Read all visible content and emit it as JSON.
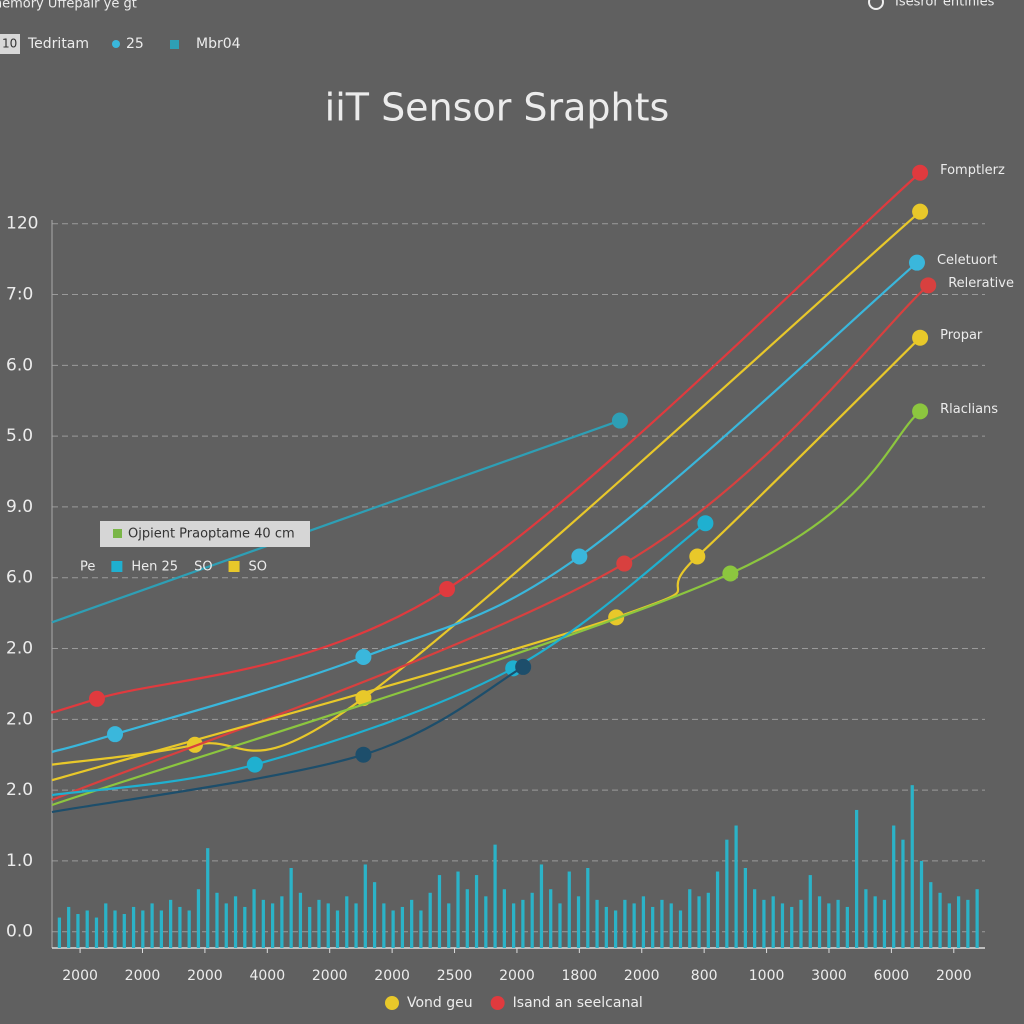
{
  "header": {
    "app_title": "Inemory Uffepair ye gt",
    "badge": "10",
    "tab": "Tedritam",
    "count": "25",
    "code": "Mbr04",
    "status": "Isesror ehtinies"
  },
  "chart_data": {
    "type": "line",
    "title": "iiT Sensor Sraphts",
    "xlim": [
      -0.45,
      14.5
    ],
    "xticks": [
      {
        "value": 0,
        "label": "2000"
      },
      {
        "value": 1,
        "label": "2000"
      },
      {
        "value": 2,
        "label": "2000"
      },
      {
        "value": 3,
        "label": "4000"
      },
      {
        "value": 4,
        "label": "2000"
      },
      {
        "value": 5,
        "label": "2000"
      },
      {
        "value": 6,
        "label": "2500"
      },
      {
        "value": 7,
        "label": "2000"
      },
      {
        "value": 8,
        "label": "1800"
      },
      {
        "value": 9,
        "label": "2000"
      },
      {
        "value": 10,
        "label": "800"
      },
      {
        "value": 11,
        "label": "1000"
      },
      {
        "value": 12,
        "label": "3000"
      },
      {
        "value": 13,
        "label": "6000"
      },
      {
        "value": 14,
        "label": "2000"
      }
    ],
    "ylim": [
      -0.23,
      10.9
    ],
    "yticks": [
      {
        "value": 0,
        "label": "0.0"
      },
      {
        "value": 1,
        "label": "1.0"
      },
      {
        "value": 2,
        "label": "2.0"
      },
      {
        "value": 3,
        "label": "2.0"
      },
      {
        "value": 4,
        "label": "2.0"
      },
      {
        "value": 5,
        "label": "6.0"
      },
      {
        "value": 6,
        "label": "9.0"
      },
      {
        "value": 7,
        "label": "5.0"
      },
      {
        "value": 8,
        "label": "6.0"
      },
      {
        "value": 9,
        "label": "7:0"
      },
      {
        "value": 10,
        "label": "120"
      }
    ],
    "grid": true,
    "series": [
      {
        "color": "#2e9fb5",
        "x": [
          -0.45,
          8.65
        ],
        "values": [
          4.37,
          7.22
        ]
      },
      {
        "name": "Fomptlerz",
        "color": "#e03a3e",
        "x": [
          -0.45,
          0.27,
          5.88,
          13.46
        ],
        "values": [
          3.1,
          3.29,
          4.84,
          10.72
        ]
      },
      {
        "color": "#e8c82a",
        "x": [
          -0.45,
          1.84,
          4.54,
          13.46
        ],
        "values": [
          2.36,
          2.64,
          3.3,
          10.17
        ]
      },
      {
        "name": "Celetuort",
        "color": "#3ab7dc",
        "x": [
          -0.45,
          0.56,
          4.54,
          8.0,
          13.41
        ],
        "values": [
          2.54,
          2.79,
          3.88,
          5.3,
          9.45
        ]
      },
      {
        "name": "Relerative",
        "color": "#d8403f",
        "x": [
          -0.45,
          8.72,
          13.59
        ],
        "values": [
          1.86,
          5.2,
          9.13
        ]
      },
      {
        "name": "Propar",
        "color": "#e8c82a",
        "x": [
          -0.45,
          8.59,
          9.89,
          13.46
        ],
        "values": [
          2.14,
          4.44,
          5.3,
          8.39
        ]
      },
      {
        "name": "Rlaclians",
        "color": "#8cc63f",
        "x": [
          -0.45,
          10.42,
          13.46
        ],
        "values": [
          1.79,
          5.06,
          7.35
        ]
      },
      {
        "color": "#1fb0d0",
        "x": [
          -0.45,
          2.8,
          6.94,
          10.02
        ],
        "values": [
          1.93,
          2.36,
          3.72,
          5.77
        ]
      },
      {
        "color": "#1d4e6b",
        "x": [
          -0.45,
          4.54,
          7.1
        ],
        "values": [
          1.69,
          2.5,
          3.74
        ]
      }
    ],
    "bars": {
      "color": "#2bb3c8",
      "values": [
        0.2,
        0.35,
        0.25,
        0.3,
        0.2,
        0.4,
        0.3,
        0.25,
        0.35,
        0.3,
        0.4,
        0.3,
        0.45,
        0.35,
        0.3,
        0.6,
        1.18,
        0.55,
        0.4,
        0.5,
        0.35,
        0.6,
        0.45,
        0.4,
        0.5,
        0.9,
        0.55,
        0.35,
        0.45,
        0.4,
        0.3,
        0.5,
        0.4,
        0.95,
        0.7,
        0.4,
        0.3,
        0.35,
        0.45,
        0.3,
        0.55,
        0.8,
        0.4,
        0.85,
        0.6,
        0.8,
        0.5,
        1.23,
        0.6,
        0.4,
        0.45,
        0.55,
        0.95,
        0.6,
        0.4,
        0.85,
        0.5,
        0.9,
        0.45,
        0.35,
        0.3,
        0.45,
        0.4,
        0.5,
        0.35,
        0.45,
        0.4,
        0.3,
        0.6,
        0.5,
        0.55,
        0.85,
        1.3,
        1.5,
        0.9,
        0.6,
        0.45,
        0.5,
        0.4,
        0.35,
        0.45,
        0.8,
        0.5,
        0.4,
        0.45,
        0.35,
        1.72,
        0.6,
        0.5,
        0.45,
        1.5,
        1.3,
        2.07,
        1.0,
        0.7,
        0.55,
        0.4,
        0.5,
        0.45,
        0.6
      ]
    },
    "inset": {
      "title": "Ojpient Praoptame 40 cm",
      "color": "#7ab648",
      "items": [
        {
          "label": "Pe"
        },
        {
          "color": "#1fb0d0",
          "label": "Hen 25"
        },
        {
          "label": "SO"
        },
        {
          "color": "#e8c82a",
          "label": "SO"
        }
      ]
    },
    "legend": [
      {
        "name": "Vond geu",
        "color": "#e8c82a"
      },
      {
        "name": "Isand an seelcanal",
        "color": "#e03a3e"
      }
    ]
  }
}
